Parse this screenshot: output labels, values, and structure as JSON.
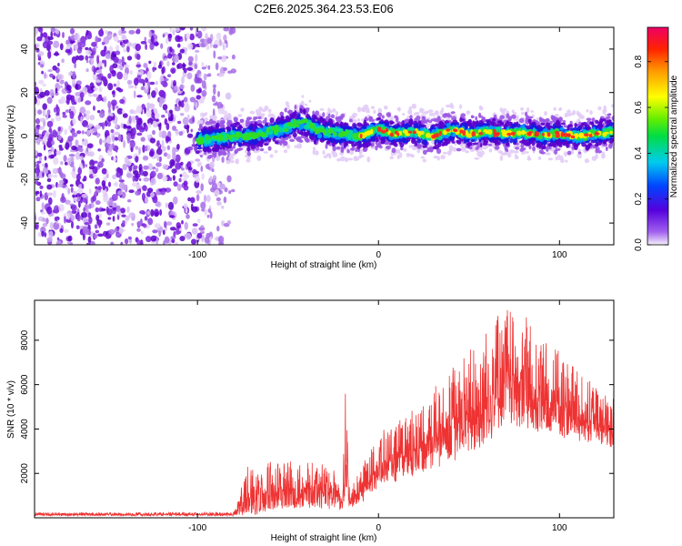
{
  "title": "C2E6.2025.364.23.53.E06",
  "chart_data": [
    {
      "type": "heatmap",
      "name": "spectrogram",
      "xlabel": "Height of straight line (km)",
      "ylabel": "Frequency (Hz)",
      "xlim": [
        -190,
        130
      ],
      "ylim": [
        -50,
        50
      ],
      "xticks": [
        -100,
        0,
        100
      ],
      "yticks": [
        -40,
        -20,
        0,
        20,
        40
      ],
      "noise_region_x": [
        -190,
        -80
      ],
      "signal_start_x": -100,
      "ridge": {
        "x": [
          -100,
          -90,
          -80,
          -70,
          -60,
          -50,
          -45,
          -40,
          -35,
          -30,
          -20,
          -10,
          0,
          10,
          20,
          30,
          40,
          50,
          60,
          70,
          80,
          90,
          100,
          110,
          120,
          130
        ],
        "freq": [
          -2,
          -1,
          0,
          0,
          2,
          4,
          6,
          6,
          3,
          2,
          1,
          0,
          3,
          1,
          2,
          0,
          3,
          1,
          2,
          1,
          2,
          0,
          1,
          0,
          1,
          2
        ]
      },
      "colorbar": {
        "label": "Normalized spectral amplitude",
        "range": [
          0,
          0.95
        ],
        "ticks": [
          0.0,
          0.2,
          0.4,
          0.6,
          0.8
        ],
        "tick_labels": [
          "0.0",
          "0.2",
          "0.4",
          "0.6",
          "0.8"
        ]
      }
    },
    {
      "type": "line",
      "name": "snr",
      "xlabel": "Height of straight line (km)",
      "ylabel": "SNR (10 * v/v)",
      "xlim": [
        -190,
        130
      ],
      "ylim": [
        0,
        9800
      ],
      "xticks": [
        -100,
        0,
        100
      ],
      "yticks": [
        2000,
        4000,
        6000,
        8000
      ],
      "color": "#ee3333",
      "envelope": {
        "x": [
          -190,
          -80,
          -72,
          -60,
          -40,
          -25,
          -20,
          -18,
          -16,
          -10,
          0,
          20,
          40,
          60,
          70,
          80,
          90,
          100,
          120,
          130
        ],
        "mean": [
          150,
          150,
          900,
          1200,
          1300,
          1100,
          600,
          3200,
          700,
          1200,
          2300,
          3000,
          4100,
          5200,
          6200,
          6000,
          5400,
          5000,
          4300,
          4000
        ],
        "amplitude": [
          100,
          100,
          1500,
          1400,
          1400,
          1200,
          500,
          3300,
          500,
          1000,
          1500,
          1900,
          2700,
          3200,
          3400,
          3200,
          2800,
          2500,
          1600,
          1400
        ]
      }
    }
  ]
}
